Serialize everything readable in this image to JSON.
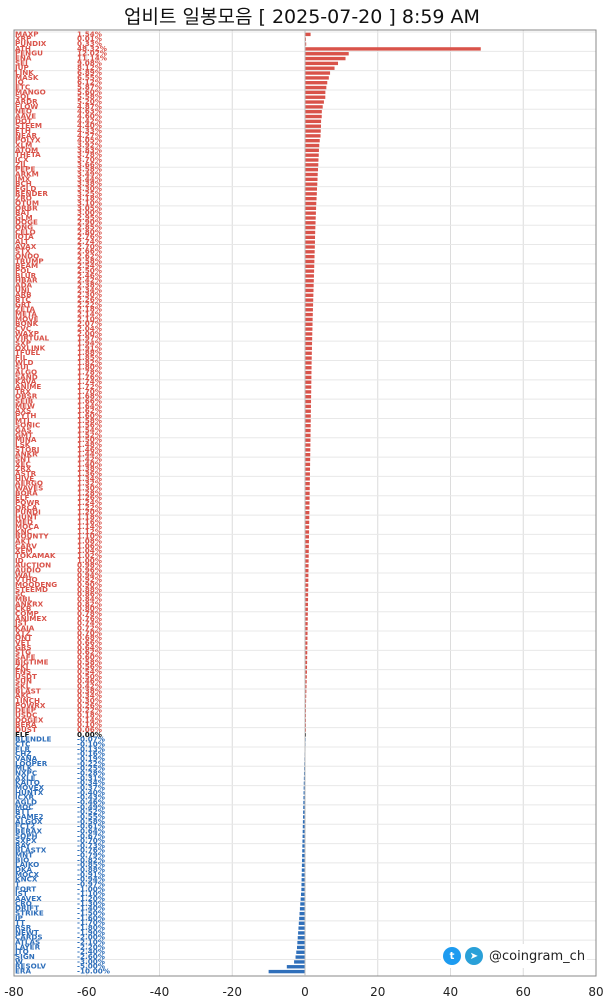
{
  "title": "업비트 일봉모음 [ 2025-07-20 ]  8:59 AM",
  "brand": {
    "handle": "@coingram_ch",
    "icons": [
      "twitter-icon",
      "telegram-icon"
    ]
  },
  "colors": {
    "up": "#d9534a",
    "down": "#2f6fba",
    "flat": "#111111"
  },
  "chart_data": {
    "type": "bar",
    "orientation": "horizontal",
    "xlim": [
      -80,
      80
    ],
    "xticks": [
      -80,
      -60,
      -40,
      -20,
      0,
      20,
      40,
      60,
      80
    ],
    "grid": true,
    "rows": [
      {
        "name": "MAXP",
        "change": 1.54
      },
      {
        "name": "XRP",
        "change": 0.01
      },
      {
        "name": "PUNDIX",
        "change": 0.33
      },
      {
        "name": "ATH",
        "change": 48.32
      },
      {
        "name": "PENGU",
        "change": 12.02
      },
      {
        "name": "ENA",
        "change": 11.14
      },
      {
        "name": "SEI",
        "change": 9.08
      },
      {
        "name": "JUP",
        "change": 8.12
      },
      {
        "name": "LINK",
        "change": 6.89
      },
      {
        "name": "MASK",
        "change": 6.55
      },
      {
        "name": "IQ",
        "change": 6.12
      },
      {
        "name": "ETC",
        "change": 5.87
      },
      {
        "name": "MANGO",
        "change": 5.6
      },
      {
        "name": "SOL",
        "change": 5.58
      },
      {
        "name": "ARDR",
        "change": 5.2
      },
      {
        "name": "FLOW",
        "change": 4.87
      },
      {
        "name": "NEO",
        "change": 4.63
      },
      {
        "name": "AAVE",
        "change": 4.6
      },
      {
        "name": "DOT",
        "change": 4.42
      },
      {
        "name": "STEEM",
        "change": 4.4
      },
      {
        "name": "ETH",
        "change": 4.33
      },
      {
        "name": "NEAR",
        "change": 4.27
      },
      {
        "name": "POLYX",
        "change": 4.05
      },
      {
        "name": "XLM",
        "change": 3.92
      },
      {
        "name": "ATOM",
        "change": 3.83
      },
      {
        "name": "THETA",
        "change": 3.78
      },
      {
        "name": "ICX",
        "change": 3.7
      },
      {
        "name": "ZIL",
        "change": 3.66
      },
      {
        "name": "PEPE",
        "change": 3.58
      },
      {
        "name": "ARKM",
        "change": 3.49
      },
      {
        "name": "IMX",
        "change": 3.44
      },
      {
        "name": "BCH",
        "change": 3.38
      },
      {
        "name": "EGLD",
        "change": 3.3
      },
      {
        "name": "RENDER",
        "change": 3.25
      },
      {
        "name": "ZRO",
        "change": 3.18
      },
      {
        "name": "QTUM",
        "change": 3.1
      },
      {
        "name": "ORBR",
        "change": 3.05
      },
      {
        "name": "BAT",
        "change": 3.0
      },
      {
        "name": "GLM",
        "change": 2.95
      },
      {
        "name": "DOGE",
        "change": 2.9
      },
      {
        "name": "ONG",
        "change": 2.85
      },
      {
        "name": "CELO",
        "change": 2.8
      },
      {
        "name": "IOTA",
        "change": 2.76
      },
      {
        "name": "ALT",
        "change": 2.74
      },
      {
        "name": "AVAX",
        "change": 2.7
      },
      {
        "name": "STX",
        "change": 2.66
      },
      {
        "name": "ONDO",
        "change": 2.62
      },
      {
        "name": "TRUMP",
        "change": 2.58
      },
      {
        "name": "BEAM",
        "change": 2.54
      },
      {
        "name": "POL",
        "change": 2.5
      },
      {
        "name": "BLUR",
        "change": 2.46
      },
      {
        "name": "HBAR",
        "change": 2.42
      },
      {
        "name": "ADA",
        "change": 2.38
      },
      {
        "name": "UNI",
        "change": 2.34
      },
      {
        "name": "ARB",
        "change": 2.3
      },
      {
        "name": "BTC",
        "change": 2.26
      },
      {
        "name": "GRT",
        "change": 2.22
      },
      {
        "name": "ZETA",
        "change": 2.18
      },
      {
        "name": "META",
        "change": 2.14
      },
      {
        "name": "MOVE",
        "change": 2.1
      },
      {
        "name": "BONK",
        "change": 2.07
      },
      {
        "name": "CVC",
        "change": 2.04
      },
      {
        "name": "WAXP",
        "change": 2.0
      },
      {
        "name": "VIRTUAL",
        "change": 1.97
      },
      {
        "name": "SXP",
        "change": 1.94
      },
      {
        "name": "OXLINK",
        "change": 1.91
      },
      {
        "name": "TFUEL",
        "change": 1.88
      },
      {
        "name": "FIL",
        "change": 1.85
      },
      {
        "name": "WLD",
        "change": 1.82
      },
      {
        "name": "SUI",
        "change": 1.8
      },
      {
        "name": "ALGO",
        "change": 1.78
      },
      {
        "name": "SAND",
        "change": 1.76
      },
      {
        "name": "KAVA",
        "change": 1.74
      },
      {
        "name": "ANIME",
        "change": 1.72
      },
      {
        "name": "TRX",
        "change": 1.7
      },
      {
        "name": "OBSR",
        "change": 1.68
      },
      {
        "name": "SEIB",
        "change": 1.66
      },
      {
        "name": "MEW",
        "change": 1.64
      },
      {
        "name": "AXS",
        "change": 1.62
      },
      {
        "name": "PYTH",
        "change": 1.6
      },
      {
        "name": "MTL",
        "change": 1.58
      },
      {
        "name": "SONIC",
        "change": 1.56
      },
      {
        "name": "GAS",
        "change": 1.54
      },
      {
        "name": "GMT",
        "change": 1.52
      },
      {
        "name": "MINA",
        "change": 1.5
      },
      {
        "name": "LSK",
        "change": 1.48
      },
      {
        "name": "STORJ",
        "change": 1.46
      },
      {
        "name": "ANKR",
        "change": 1.44
      },
      {
        "name": "SNT",
        "change": 1.42
      },
      {
        "name": "XEC",
        "change": 1.4
      },
      {
        "name": "ZRX",
        "change": 1.38
      },
      {
        "name": "ASTR",
        "change": 1.36
      },
      {
        "name": "HIVE",
        "change": 1.34
      },
      {
        "name": "AERGO",
        "change": 1.32
      },
      {
        "name": "WAVES",
        "change": 1.3
      },
      {
        "name": "BORA",
        "change": 1.28
      },
      {
        "name": "ELF",
        "change": 1.26
      },
      {
        "name": "POWR",
        "change": 1.24
      },
      {
        "name": "ORCA",
        "change": 1.22
      },
      {
        "name": "PUNDI",
        "change": 1.2
      },
      {
        "name": "HUNT",
        "change": 1.18
      },
      {
        "name": "MED",
        "change": 1.16
      },
      {
        "name": "MOCA",
        "change": 1.14
      },
      {
        "name": "KNC",
        "change": 1.12
      },
      {
        "name": "BOUNTY",
        "change": 1.1
      },
      {
        "name": "AKT",
        "change": 1.08
      },
      {
        "name": "CARV",
        "change": 1.06
      },
      {
        "name": "XEM",
        "change": 1.04
      },
      {
        "name": "TOKAMAK",
        "change": 1.02
      },
      {
        "name": "ID",
        "change": 1.0
      },
      {
        "name": "AUCTION",
        "change": 0.98
      },
      {
        "name": "AUDIO",
        "change": 0.96
      },
      {
        "name": "WAL",
        "change": 0.94
      },
      {
        "name": "VTHO",
        "change": 0.92
      },
      {
        "name": "MOODENG",
        "change": 0.9
      },
      {
        "name": "STEEMD",
        "change": 0.88
      },
      {
        "name": "SC",
        "change": 0.86
      },
      {
        "name": "MBL",
        "change": 0.84
      },
      {
        "name": "ANKRX",
        "change": 0.82
      },
      {
        "name": "CKB",
        "change": 0.8
      },
      {
        "name": "COMP",
        "change": 0.78
      },
      {
        "name": "ANIMEX",
        "change": 0.76
      },
      {
        "name": "JST",
        "change": 0.74
      },
      {
        "name": "KAIA",
        "change": 0.72
      },
      {
        "name": "XTZ",
        "change": 0.7
      },
      {
        "name": "ONT",
        "change": 0.68
      },
      {
        "name": "VET",
        "change": 0.66
      },
      {
        "name": "GRS",
        "change": 0.64
      },
      {
        "name": "STG",
        "change": 0.62
      },
      {
        "name": "SAFE",
        "change": 0.6
      },
      {
        "name": "BIGTIME",
        "change": 0.58
      },
      {
        "name": "ZKJ",
        "change": 0.56
      },
      {
        "name": "ENS",
        "change": 0.54
      },
      {
        "name": "USDT",
        "change": 0.5
      },
      {
        "name": "SUN",
        "change": 0.46
      },
      {
        "name": "SKL",
        "change": 0.42
      },
      {
        "name": "BLAST",
        "change": 0.38
      },
      {
        "name": "AKC",
        "change": 0.34
      },
      {
        "name": "1INCH",
        "change": 0.3
      },
      {
        "name": "POWRX",
        "change": 0.26
      },
      {
        "name": "DEEP",
        "change": 0.22
      },
      {
        "name": "USDC",
        "change": 0.18
      },
      {
        "name": "DOGEX",
        "change": 0.14
      },
      {
        "name": "BERA",
        "change": 0.1
      },
      {
        "name": "DUST",
        "change": 0.06
      },
      {
        "name": "ELF",
        "change": 0.0
      },
      {
        "name": "BLENDLE",
        "change": -0.07
      },
      {
        "name": "CTC",
        "change": -0.1
      },
      {
        "name": "FLR",
        "change": -0.13
      },
      {
        "name": "CHZ",
        "change": -0.16
      },
      {
        "name": "VANA",
        "change": -0.19
      },
      {
        "name": "LOOPER",
        "change": -0.22
      },
      {
        "name": "MLK",
        "change": -0.25
      },
      {
        "name": "NXPC",
        "change": -0.28
      },
      {
        "name": "AXLE",
        "change": -0.31
      },
      {
        "name": "KAITO",
        "change": -0.34
      },
      {
        "name": "MOVEX",
        "change": -0.37
      },
      {
        "name": "HUNTX",
        "change": -0.4
      },
      {
        "name": "ICXR",
        "change": -0.43
      },
      {
        "name": "AGLD",
        "change": -0.46
      },
      {
        "name": "MOC",
        "change": -0.49
      },
      {
        "name": "BTT",
        "change": -0.52
      },
      {
        "name": "GAME2",
        "change": -0.55
      },
      {
        "name": "ALGOX",
        "change": -0.58
      },
      {
        "name": "FCT2",
        "change": -0.61
      },
      {
        "name": "BERAX",
        "change": -0.64
      },
      {
        "name": "SOPH",
        "change": -0.67
      },
      {
        "name": "SXPX",
        "change": -0.7
      },
      {
        "name": "RAY",
        "change": -0.73
      },
      {
        "name": "BLASTX",
        "change": -0.76
      },
      {
        "name": "MNT",
        "change": -0.79
      },
      {
        "name": "BIO",
        "change": -0.82
      },
      {
        "name": "LAIKO",
        "change": -0.85
      },
      {
        "name": "DKA",
        "change": -0.88
      },
      {
        "name": "MOCX",
        "change": -0.91
      },
      {
        "name": "KNCX",
        "change": -0.94
      },
      {
        "name": "T",
        "change": -0.97
      },
      {
        "name": "FORT",
        "change": -1.0
      },
      {
        "name": "IST",
        "change": -1.1
      },
      {
        "name": "AAVEX",
        "change": -1.2
      },
      {
        "name": "CRO",
        "change": -1.3
      },
      {
        "name": "DRIFT",
        "change": -1.4
      },
      {
        "name": "STRIKE",
        "change": -1.5
      },
      {
        "name": "IP",
        "change": -1.6
      },
      {
        "name": "TT",
        "change": -1.7
      },
      {
        "name": "RSR",
        "change": -1.8
      },
      {
        "name": "NEWT",
        "change": -1.9
      },
      {
        "name": "CARDS",
        "change": -2.0
      },
      {
        "name": "ATLAS",
        "change": -2.1
      },
      {
        "name": "LAYER",
        "change": -2.2
      },
      {
        "name": "JTO",
        "change": -2.4
      },
      {
        "name": "SIGN",
        "change": -2.6
      },
      {
        "name": "W",
        "change": -3.0
      },
      {
        "name": "RESOLV",
        "change": -5.0
      },
      {
        "name": "ERA",
        "change": -10.0
      }
    ]
  }
}
